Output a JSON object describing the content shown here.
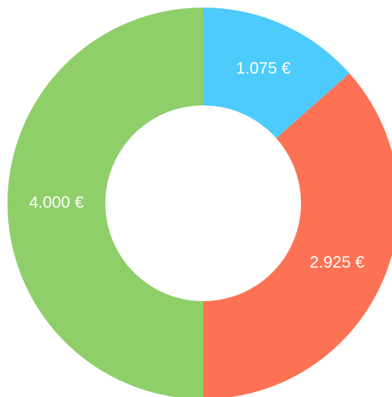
{
  "chart_data": {
    "type": "donut",
    "categories": [
      null,
      null,
      null
    ],
    "values": [
      1075,
      2925,
      4000
    ],
    "value_labels": [
      "1.075 €",
      "2.925 €",
      "4.000 €"
    ],
    "colors": [
      "#4ecbfd",
      "#fd7254",
      "#8fcf6a"
    ]
  }
}
